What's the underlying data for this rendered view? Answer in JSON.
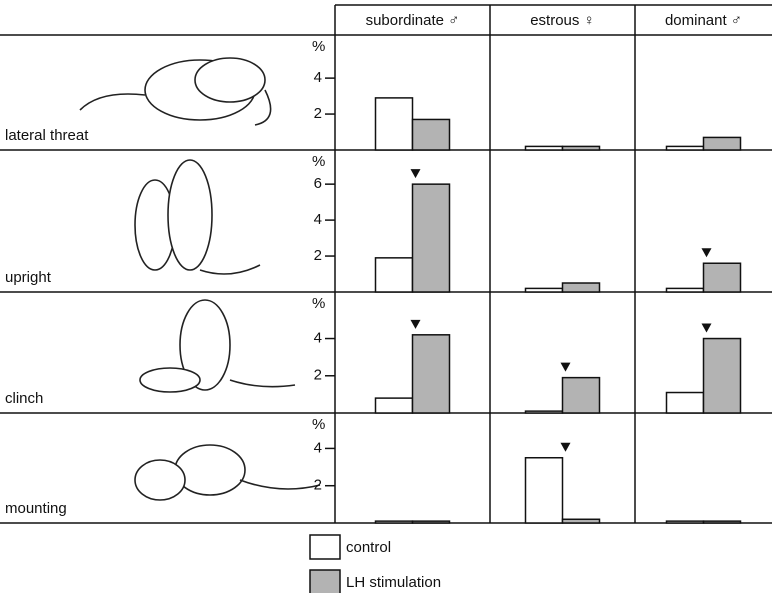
{
  "chart_data": {
    "type": "bar",
    "categories": [
      "subordinate ♂",
      "estrous ♀",
      "dominant ♂"
    ],
    "y_unit": "%",
    "legend": [
      {
        "name": "control",
        "color": "#ffffff"
      },
      {
        "name": "LH stimulation",
        "color": "#b3b3b3"
      }
    ],
    "panels": [
      {
        "label": "lateral threat",
        "ylim": [
          0,
          6.4
        ],
        "yticks": [
          2,
          4
        ],
        "series": [
          {
            "values": [
              2.9,
              0.2,
              0.2
            ]
          },
          {
            "values": [
              1.7,
              0.2,
              0.7
            ]
          }
        ],
        "significant": [
          false,
          false,
          false
        ]
      },
      {
        "label": "upright",
        "ylim": [
          0,
          7.9
        ],
        "yticks": [
          2,
          4,
          6
        ],
        "series": [
          {
            "values": [
              1.9,
              0.2,
              0.2
            ]
          },
          {
            "values": [
              6.0,
              0.5,
              1.6
            ]
          }
        ],
        "significant": [
          true,
          false,
          true
        ]
      },
      {
        "label": "clinch",
        "ylim": [
          0,
          6.5
        ],
        "yticks": [
          2,
          4
        ],
        "series": [
          {
            "values": [
              0.8,
              0.1,
              1.1
            ]
          },
          {
            "values": [
              4.2,
              1.9,
              4.0
            ]
          }
        ],
        "significant": [
          true,
          true,
          true
        ]
      },
      {
        "label": "mounting",
        "ylim": [
          0,
          5.9
        ],
        "yticks": [
          2,
          4
        ],
        "series": [
          {
            "values": [
              0.1,
              3.5,
              0.1
            ]
          },
          {
            "values": [
              0.1,
              0.2,
              0.1
            ]
          }
        ],
        "significant": [
          false,
          true,
          false
        ]
      }
    ]
  }
}
